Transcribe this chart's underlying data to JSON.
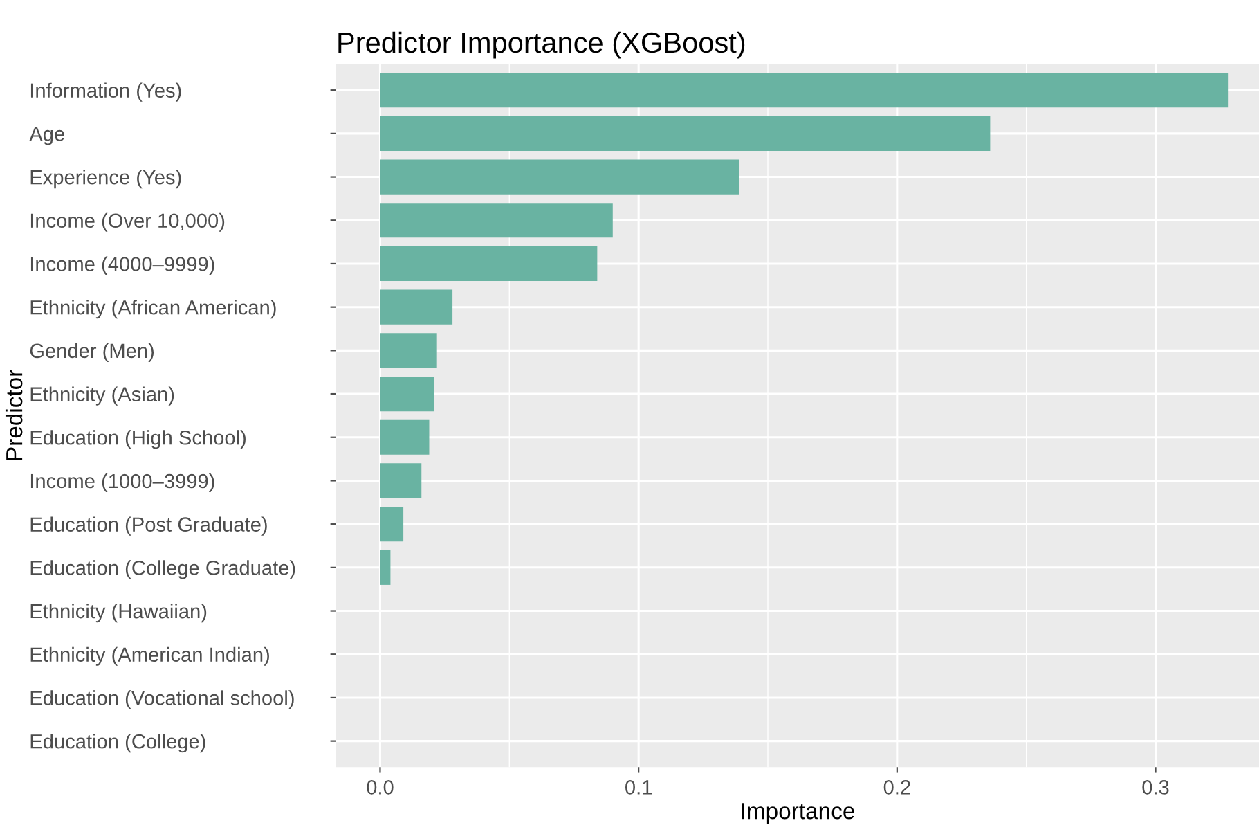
{
  "chart_data": {
    "type": "bar",
    "orientation": "horizontal",
    "title": "Predictor Importance (XGBoost)",
    "xlabel": "Importance",
    "ylabel": "Predictor",
    "categories": [
      "Information (Yes)",
      "Age",
      "Experience (Yes)",
      "Income (Over 10,000)",
      "Income (4000–9999)",
      "Ethnicity (African American)",
      "Gender (Men)",
      "Ethnicity (Asian)",
      "Education (High School)",
      "Income (1000–3999)",
      "Education (Post Graduate)",
      "Education (College Graduate)",
      "Ethnicity (Hawaiian)",
      "Ethnicity (American Indian)",
      "Education (Vocational school)",
      "Education (College)"
    ],
    "values": [
      0.328,
      0.236,
      0.139,
      0.09,
      0.084,
      0.028,
      0.022,
      0.021,
      0.019,
      0.016,
      0.009,
      0.004,
      0,
      0,
      0,
      0
    ],
    "color": "#69b3a2",
    "xlim": [
      -0.017,
      0.34
    ],
    "xticks": [
      {
        "value": 0,
        "label": "0.0"
      },
      0.1,
      0.2,
      0.3
    ],
    "grid": true,
    "legend": false
  }
}
